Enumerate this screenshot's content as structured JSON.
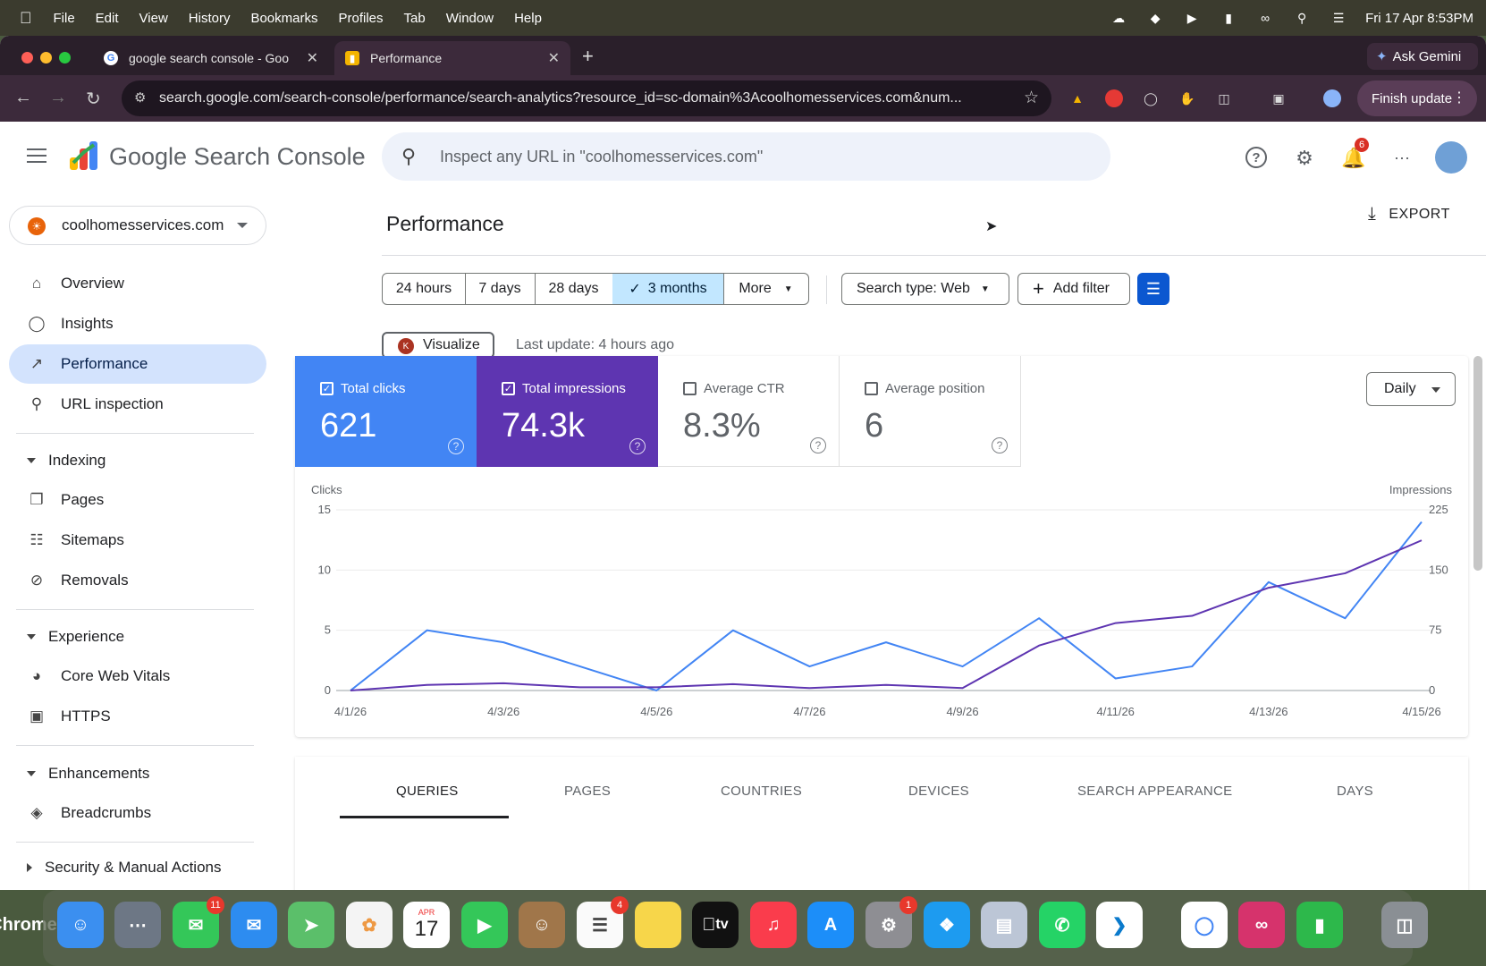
{
  "menubar": {
    "app_name": "Chrome",
    "menus": [
      "File",
      "Edit",
      "View",
      "History",
      "Bookmarks",
      "Profiles",
      "Tab",
      "Window",
      "Help"
    ],
    "clock": "Fri 17 Apr  8:53PM"
  },
  "browser": {
    "tabs": [
      {
        "title": "google search console - Goo"
      },
      {
        "title": "Performance"
      }
    ],
    "url": "search.google.com/search-console/performance/search-analytics?resource_id=sc-domain%3Acoolhomesservices.com&num...",
    "ask_gemini": "Ask Gemini",
    "finish_update": "Finish update"
  },
  "gsc": {
    "logo_text": "Google Search Console",
    "search_placeholder": "Inspect any URL in \"coolhomesservices.com\"",
    "notifications_count": "6",
    "property": "coolhomesservices.com"
  },
  "sidebar": {
    "items": [
      {
        "label": "Overview",
        "icon": "home-icon"
      },
      {
        "label": "Insights",
        "icon": "lightbulb-icon"
      },
      {
        "label": "Performance",
        "icon": "trending-up-icon"
      },
      {
        "label": "URL inspection",
        "icon": "search-icon"
      }
    ],
    "indexing": {
      "title": "Indexing",
      "items": [
        {
          "label": "Pages"
        },
        {
          "label": "Sitemaps"
        },
        {
          "label": "Removals"
        }
      ]
    },
    "experience": {
      "title": "Experience",
      "items": [
        {
          "label": "Core Web Vitals"
        },
        {
          "label": "HTTPS"
        }
      ]
    },
    "enhancements": {
      "title": "Enhancements",
      "items": [
        {
          "label": "Breadcrumbs"
        }
      ]
    },
    "security": {
      "title": "Security & Manual Actions"
    }
  },
  "page": {
    "title": "Performance",
    "export_label": "EXPORT",
    "date_ranges": [
      "24 hours",
      "7 days",
      "28 days",
      "3 months",
      "More"
    ],
    "selected_range": "3 months",
    "search_type": "Search type: Web",
    "add_filter": "Add filter",
    "visualize": "Visualize",
    "last_update": "Last update: 4 hours ago"
  },
  "metrics": [
    {
      "label": "Total clicks",
      "value": "621",
      "checked": true,
      "color": "#4285f4"
    },
    {
      "label": "Total impressions",
      "value": "74.3k",
      "checked": true,
      "color": "#5e35b1"
    },
    {
      "label": "Average CTR",
      "value": "8.3%",
      "checked": false,
      "color": "#ffffff"
    },
    {
      "label": "Average position",
      "value": "6",
      "checked": false,
      "color": "#ffffff"
    }
  ],
  "granularity": "Daily",
  "chart_data": {
    "type": "line",
    "ylabel_left": "Clicks",
    "ylabel_right": "Impressions",
    "y_left_ticks": [
      "0",
      "5",
      "10",
      "15"
    ],
    "y_right_ticks": [
      "0",
      "75",
      "150",
      "225"
    ],
    "ylim_left": [
      0,
      15
    ],
    "ylim_right": [
      0,
      225
    ],
    "x_tick_labels": [
      "4/1/26",
      "4/3/26",
      "4/5/26",
      "4/7/26",
      "4/9/26",
      "4/11/26",
      "4/13/26",
      "4/15/26"
    ],
    "x": [
      "4/1/26",
      "4/2/26",
      "4/3/26",
      "4/4/26",
      "4/5/26",
      "4/6/26",
      "4/7/26",
      "4/8/26",
      "4/9/26",
      "4/10/26",
      "4/11/26",
      "4/12/26",
      "4/13/26",
      "4/14/26",
      "4/15/26"
    ],
    "grid": true,
    "series": [
      {
        "name": "Total clicks",
        "axis": "left",
        "color": "#4285f4",
        "values": [
          0,
          5,
          4,
          2,
          0,
          5,
          2,
          4,
          2,
          6,
          1,
          2,
          9,
          6,
          14
        ]
      },
      {
        "name": "Total impressions",
        "axis": "right",
        "color": "#5e35b1",
        "values": [
          0,
          7,
          9,
          4,
          4,
          8,
          3,
          7,
          3,
          56,
          84,
          93,
          128,
          146,
          187
        ]
      }
    ]
  },
  "report_tabs": [
    "QUERIES",
    "PAGES",
    "COUNTRIES",
    "DEVICES",
    "SEARCH APPEARANCE",
    "DAYS"
  ],
  "dock": {
    "calendar_month": "APR",
    "calendar_day": "17",
    "appletv_label": "tv",
    "badges": {
      "messages": "11",
      "reminders": "4",
      "settings": "1"
    }
  }
}
